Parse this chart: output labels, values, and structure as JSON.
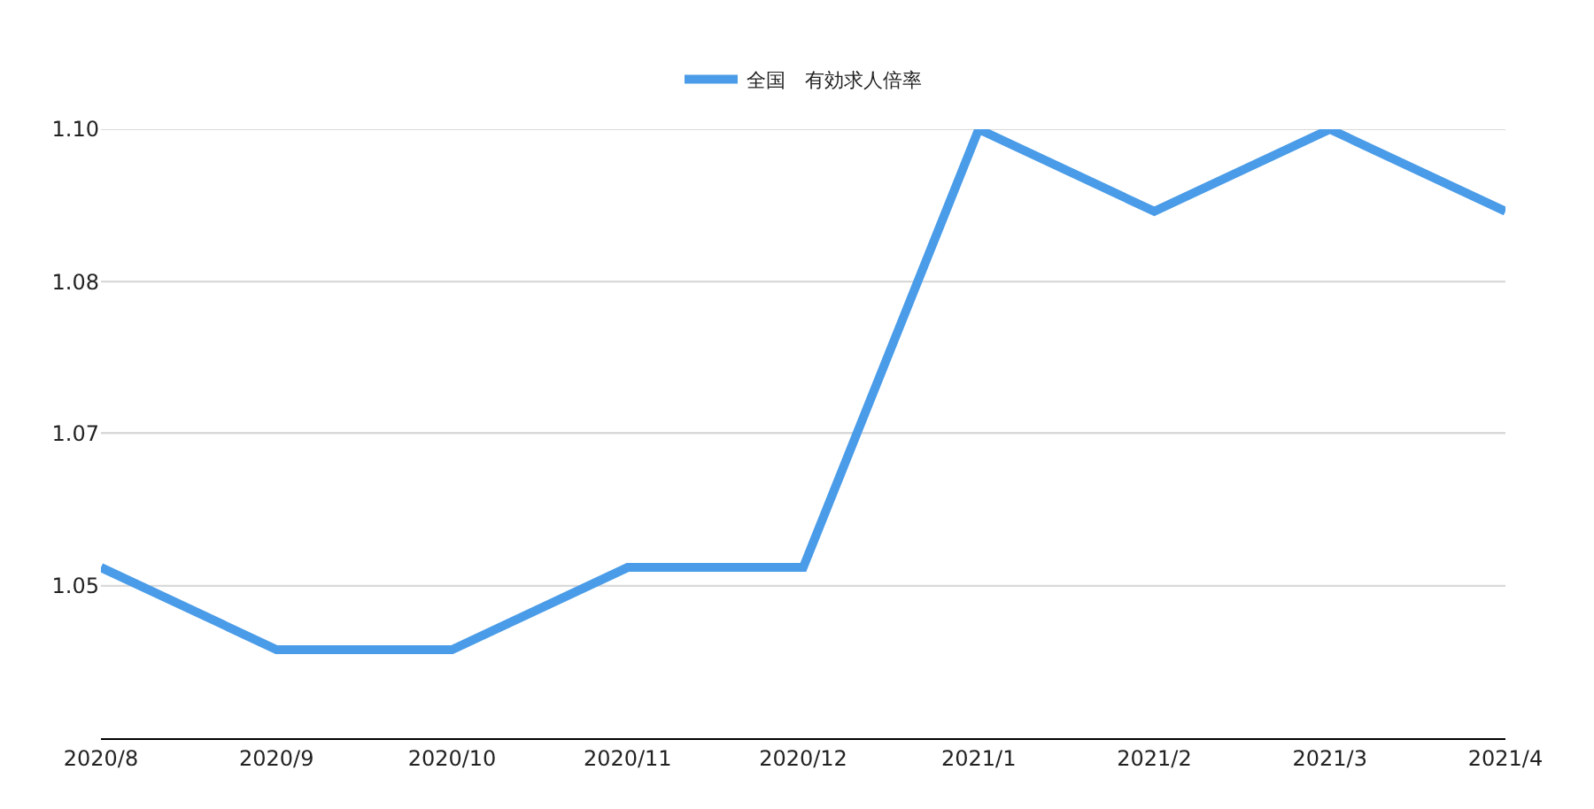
{
  "chart_data": {
    "type": "line",
    "categories": [
      "2020/8",
      "2020/9",
      "2020/10",
      "2020/11",
      "2020/12",
      "2021/1",
      "2021/2",
      "2021/3",
      "2021/4"
    ],
    "series": [
      {
        "name": "全国　有効求人倍率",
        "color": "#4a9ce8",
        "values": [
          1.052,
          1.043,
          1.043,
          1.052,
          1.052,
          1.1,
          1.091,
          1.1,
          1.091
        ]
      }
    ],
    "ylim": [
      1.0333,
      1.1
    ],
    "yticks": [
      {
        "value": 1.05,
        "label": "1.05"
      },
      {
        "value": 1.0667,
        "label": "1.07"
      },
      {
        "value": 1.0833,
        "label": "1.08"
      },
      {
        "value": 1.1,
        "label": "1.10"
      }
    ],
    "grid": "y",
    "legend": "top",
    "marker": "none",
    "line_style": "solid"
  }
}
